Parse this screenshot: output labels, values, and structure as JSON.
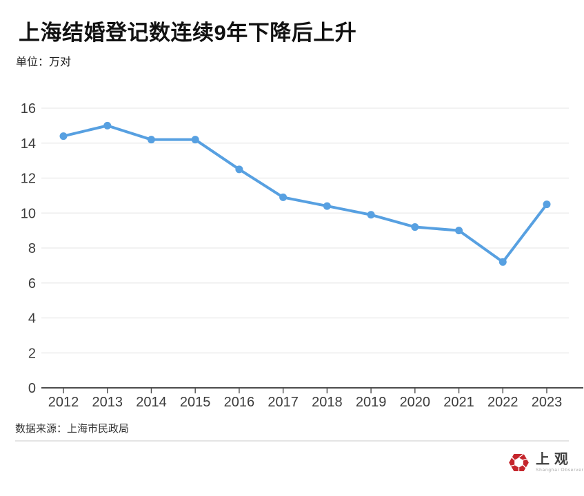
{
  "page": {
    "title": "上海结婚登记数连续9年下降后上升",
    "unit_label": "单位：万对",
    "source_label": "数据来源：上海市民政局"
  },
  "logo": {
    "name_cn": "上观",
    "name_en": "Shanghai Observer",
    "brand_color": "#c5252c"
  },
  "chart_data": {
    "type": "line",
    "title": "上海结婚登记数连续9年下降后上升",
    "xlabel": "",
    "ylabel": "万对",
    "categories": [
      "2012",
      "2013",
      "2014",
      "2015",
      "2016",
      "2017",
      "2018",
      "2019",
      "2020",
      "2021",
      "2022",
      "2023"
    ],
    "values": [
      14.4,
      15.0,
      14.2,
      14.2,
      12.5,
      10.9,
      10.4,
      9.9,
      9.2,
      9.0,
      7.2,
      10.5
    ],
    "ylim": [
      0,
      16
    ],
    "yticks": [
      0,
      2,
      4,
      6,
      8,
      10,
      12,
      14,
      16
    ],
    "grid": true,
    "legend": "none",
    "line_color": "#57a0e1",
    "grid_color": "#e9e9e9",
    "axis_color": "#4c4c4c",
    "tick_label_color": "#3c3c3c"
  }
}
